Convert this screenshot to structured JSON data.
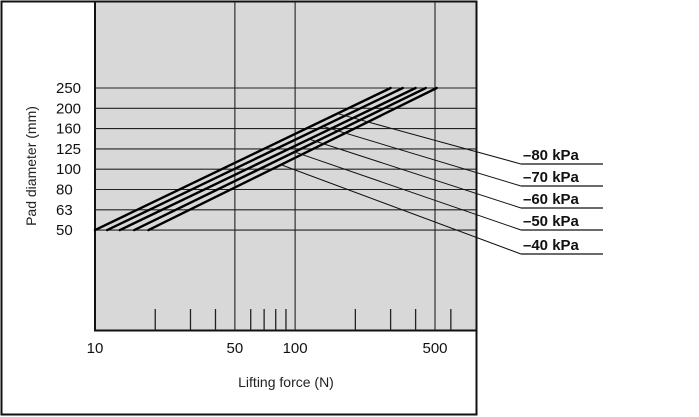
{
  "chart_data": {
    "type": "line",
    "title": "",
    "xlabel": "Lifting force (N)",
    "ylabel": "Pad diameter (mm)",
    "x_scale": "log",
    "xlim": [
      10,
      600
    ],
    "x_ticks": [
      10,
      50,
      100,
      500
    ],
    "x_tick_labels": [
      "10",
      "50",
      "100",
      "500"
    ],
    "x_minor_ticks": [
      20,
      30,
      40,
      60,
      70,
      80,
      90,
      200,
      300,
      400,
      600
    ],
    "y_tick_labels": [
      "250",
      "200",
      "160",
      "125",
      "100",
      "80",
      "63",
      "50"
    ],
    "y_ticks": [
      250,
      200,
      160,
      125,
      100,
      80,
      63,
      50
    ],
    "grid": true,
    "background": "#d8d8d8",
    "series": [
      {
        "name": "–80 kPa",
        "x": [
          10,
          300
        ],
        "y": [
          50,
          250
        ]
      },
      {
        "name": "–70 kPa",
        "x": [
          11.5,
          345
        ],
        "y": [
          50,
          250
        ]
      },
      {
        "name": "–60 kPa",
        "x": [
          13.3,
          400
        ],
        "y": [
          50,
          250
        ]
      },
      {
        "name": "–50 kPa",
        "x": [
          15.7,
          450
        ],
        "y": [
          50,
          250
        ]
      },
      {
        "name": "–40 kPa",
        "x": [
          18.5,
          510
        ],
        "y": [
          50,
          250
        ]
      }
    ]
  }
}
